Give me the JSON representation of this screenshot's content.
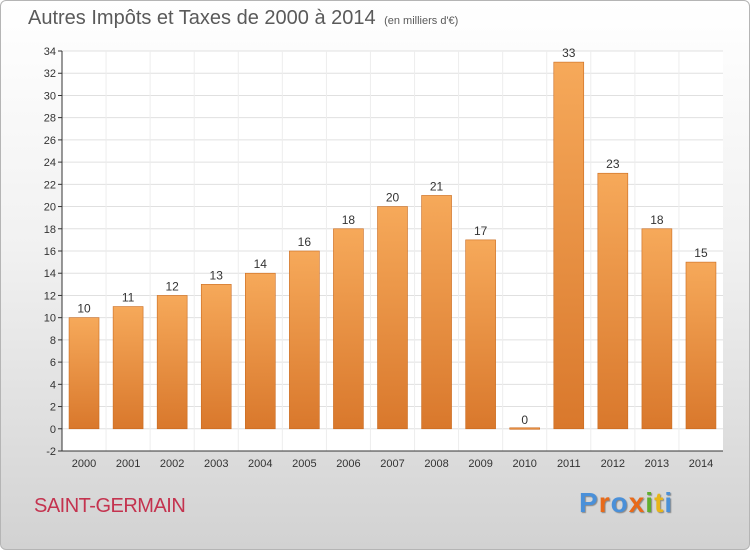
{
  "title": "Autres Impôts et Taxes de 2000 à 2014",
  "unit": "(en milliers d'€)",
  "commune": "SAINT-GERMAIN",
  "brand": "Proxiti",
  "brand_colors": [
    "#4a90d9",
    "#e86a1a",
    "#4a90d9",
    "#e86a1a",
    "#5fae2d",
    "#e8b51a",
    "#4a90d9"
  ],
  "colors": {
    "bar_top": "#f6a95a",
    "bar_bottom": "#d9782c",
    "axis": "#333333",
    "grid": "#e0e0e0"
  },
  "chart_data": {
    "type": "bar",
    "categories": [
      "2000",
      "2001",
      "2002",
      "2003",
      "2004",
      "2005",
      "2006",
      "2007",
      "2008",
      "2009",
      "2010",
      "2011",
      "2012",
      "2013",
      "2014"
    ],
    "values": [
      10,
      11,
      12,
      13,
      14,
      16,
      18,
      20,
      21,
      17,
      0,
      33,
      23,
      18,
      15
    ],
    "data_labels": [
      "10",
      "11",
      "12",
      "13",
      "14",
      "16",
      "18",
      "20",
      "21",
      "17",
      "0",
      "33",
      "23",
      "18",
      "15"
    ],
    "title": "Autres Impôts et Taxes de 2000 à 2014",
    "xlabel": "",
    "ylabel": "",
    "ylim": [
      -2,
      34
    ],
    "yticks": [
      -2,
      0,
      2,
      4,
      6,
      8,
      10,
      12,
      14,
      16,
      18,
      20,
      22,
      24,
      26,
      28,
      30,
      32,
      34
    ],
    "grid": true,
    "legend": "none"
  }
}
